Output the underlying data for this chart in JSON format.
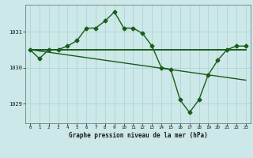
{
  "title": "Graphe pression niveau de la mer (hPa)",
  "bg_color": "#cce8e8",
  "grid_color": "#b0d4d4",
  "line_color": "#1a5c1a",
  "xlim": [
    -0.5,
    23.5
  ],
  "ylim": [
    1028.45,
    1031.75
  ],
  "yticks": [
    1029,
    1030,
    1031
  ],
  "ytick_labels": [
    "1029",
    "1030",
    "1031"
  ],
  "xticks": [
    0,
    1,
    2,
    3,
    4,
    5,
    6,
    7,
    8,
    9,
    10,
    11,
    12,
    13,
    14,
    15,
    16,
    17,
    18,
    19,
    20,
    21,
    22,
    23
  ],
  "series_main": {
    "x": [
      0,
      1,
      2,
      3,
      4,
      5,
      6,
      7,
      8,
      9,
      10,
      11,
      12,
      13,
      14,
      15,
      16,
      17,
      18,
      19,
      20,
      21,
      22,
      23
    ],
    "y": [
      1030.5,
      1030.25,
      1030.5,
      1030.5,
      1030.6,
      1030.75,
      1031.1,
      1031.1,
      1031.3,
      1031.55,
      1031.1,
      1031.1,
      1030.95,
      1030.6,
      1030.0,
      1029.95,
      1029.1,
      1028.75,
      1029.1,
      1029.8,
      1030.2,
      1030.5,
      1030.6,
      1030.6
    ]
  },
  "series_flat": {
    "x": [
      0,
      23
    ],
    "y": [
      1030.5,
      1030.5
    ]
  },
  "series_slope": {
    "x": [
      0,
      23
    ],
    "y": [
      1030.5,
      1029.65
    ]
  }
}
